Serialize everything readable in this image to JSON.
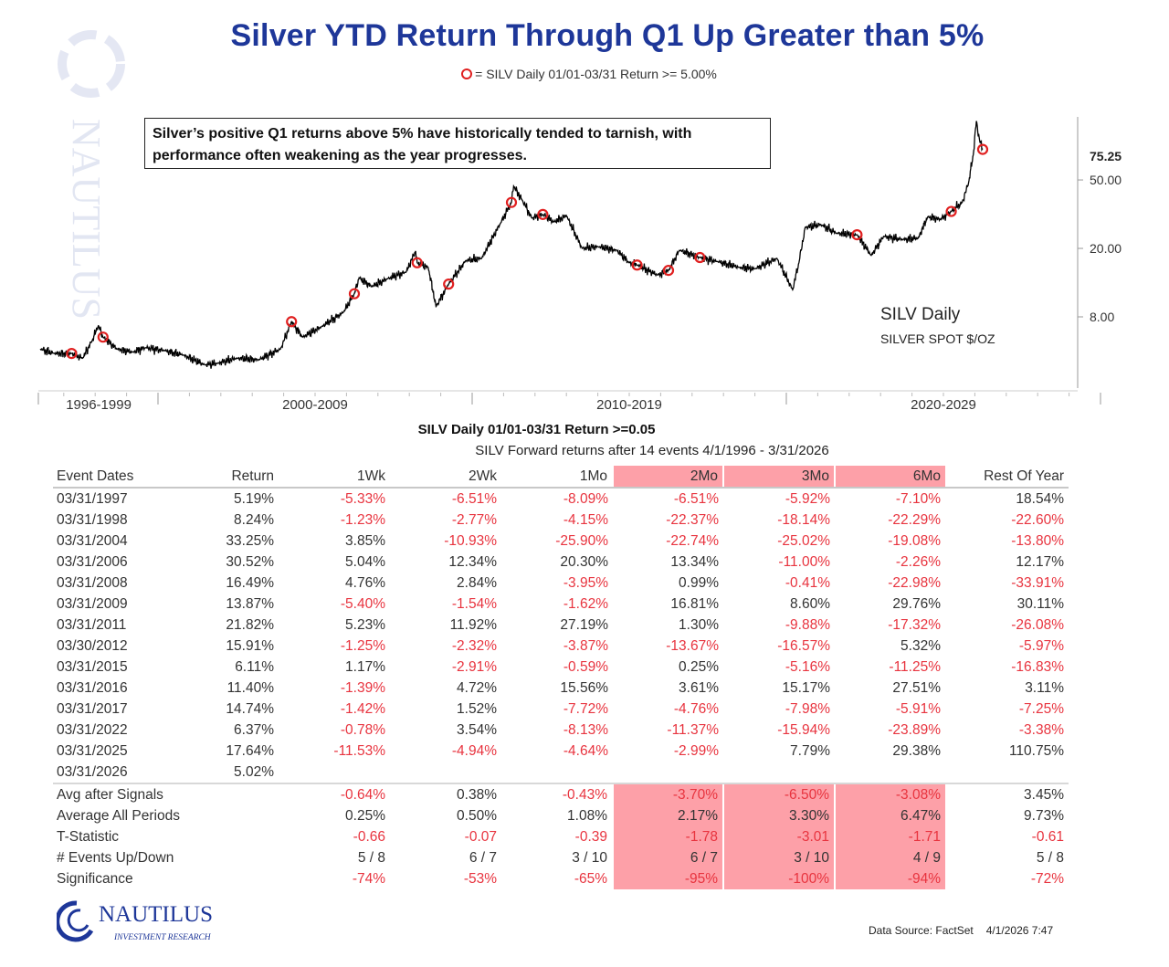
{
  "title": "Silver YTD Return Through Q1 Up Greater than 5%",
  "legend": "= SILV Daily 01/01-03/31 Return >= 5.00%",
  "note": "Silver’s positive Q1 returns above 5% have historically tended to tarnish, with performance often weakening as the year progresses.",
  "colors": {
    "title": "#1e3799",
    "line": "#000000",
    "marker": "#e02020",
    "negative": "#e8343f",
    "highlight": "#fda0a8"
  },
  "chart_data": {
    "type": "line",
    "series_name": "SILV Daily",
    "series_sub": "SILVER SPOT $/OZ",
    "yscale": "log",
    "y_ticks": [
      8,
      20,
      50
    ],
    "y_tick_labels": [
      "8.00",
      "20.00",
      "50.00"
    ],
    "last_value_label": "75.25",
    "last_value": 75.25,
    "x_ticks": [
      "1996-1999",
      "2000-2009",
      "2010-2019",
      "2020-2029"
    ],
    "xlim": [
      1996.0,
      2030.0
    ],
    "points": [
      [
        1996.25,
        5.2
      ],
      [
        1996.7,
        4.9
      ],
      [
        1997.25,
        4.9
      ],
      [
        1997.6,
        4.6
      ],
      [
        1997.9,
        5.8
      ],
      [
        1998.1,
        7.1
      ],
      [
        1998.25,
        6.1
      ],
      [
        1998.7,
        5.2
      ],
      [
        1999.2,
        5.0
      ],
      [
        1999.6,
        5.3
      ],
      [
        2000.2,
        5.1
      ],
      [
        2000.8,
        4.8
      ],
      [
        2001.5,
        4.2
      ],
      [
        2001.9,
        4.3
      ],
      [
        2002.5,
        4.6
      ],
      [
        2003.2,
        4.5
      ],
      [
        2003.9,
        5.2
      ],
      [
        2004.25,
        7.5
      ],
      [
        2004.6,
        6.1
      ],
      [
        2005.2,
        7.0
      ],
      [
        2005.9,
        8.5
      ],
      [
        2006.25,
        10.9
      ],
      [
        2006.4,
        13.5
      ],
      [
        2006.8,
        12.0
      ],
      [
        2007.3,
        13.3
      ],
      [
        2007.9,
        14.6
      ],
      [
        2008.2,
        19.3
      ],
      [
        2008.25,
        16.5
      ],
      [
        2008.6,
        15.5
      ],
      [
        2008.85,
        9.2
      ],
      [
        2009.25,
        12.4
      ],
      [
        2009.8,
        17.0
      ],
      [
        2010.3,
        17.5
      ],
      [
        2010.9,
        28.0
      ],
      [
        2011.25,
        37.0
      ],
      [
        2011.32,
        46.0
      ],
      [
        2011.6,
        38.0
      ],
      [
        2011.9,
        30.0
      ],
      [
        2012.25,
        31.5
      ],
      [
        2012.6,
        28.5
      ],
      [
        2013.0,
        31.0
      ],
      [
        2013.5,
        20.0
      ],
      [
        2014.0,
        20.5
      ],
      [
        2014.6,
        19.5
      ],
      [
        2015.0,
        16.5
      ],
      [
        2015.25,
        16.0
      ],
      [
        2015.9,
        14.0
      ],
      [
        2016.25,
        14.9
      ],
      [
        2016.6,
        19.5
      ],
      [
        2017.25,
        17.7
      ],
      [
        2017.8,
        16.8
      ],
      [
        2018.5,
        15.5
      ],
      [
        2019.0,
        15.2
      ],
      [
        2019.7,
        17.5
      ],
      [
        2020.2,
        11.5
      ],
      [
        2020.4,
        16.5
      ],
      [
        2020.6,
        26.5
      ],
      [
        2021.1,
        27.5
      ],
      [
        2021.6,
        24.5
      ],
      [
        2022.25,
        24.0
      ],
      [
        2022.7,
        18.2
      ],
      [
        2023.1,
        23.5
      ],
      [
        2023.7,
        22.5
      ],
      [
        2024.2,
        23.0
      ],
      [
        2024.5,
        30.5
      ],
      [
        2024.9,
        29.5
      ],
      [
        2025.25,
        32.8
      ],
      [
        2025.6,
        37.0
      ],
      [
        2025.8,
        48.0
      ],
      [
        2025.95,
        70.0
      ],
      [
        2026.05,
        110.0
      ],
      [
        2026.15,
        85.0
      ],
      [
        2026.25,
        75.25
      ]
    ],
    "events": [
      [
        1997.25,
        4.9
      ],
      [
        1998.25,
        6.1
      ],
      [
        2004.25,
        7.5
      ],
      [
        2006.25,
        10.9
      ],
      [
        2008.25,
        16.5
      ],
      [
        2009.25,
        12.4
      ],
      [
        2011.25,
        37.0
      ],
      [
        2012.25,
        31.5
      ],
      [
        2015.25,
        16.0
      ],
      [
        2016.25,
        14.9
      ],
      [
        2017.25,
        17.7
      ],
      [
        2022.25,
        24.0
      ],
      [
        2025.25,
        32.8
      ],
      [
        2026.25,
        75.25
      ]
    ]
  },
  "table": {
    "title": "SILV Daily 01/01-03/31 Return >=0.05",
    "subtitle": "SILV Forward returns after 14 events 4/1/1996 - 3/31/2026",
    "headers": [
      "Event Dates",
      "Return",
      "1Wk",
      "2Wk",
      "1Mo",
      "2Mo",
      "3Mo",
      "6Mo",
      "Rest Of Year"
    ],
    "rows": [
      [
        "03/31/1997",
        "5.19%",
        "-5.33%",
        "-6.51%",
        "-8.09%",
        "-6.51%",
        "-5.92%",
        "-7.10%",
        "18.54%"
      ],
      [
        "03/31/1998",
        "8.24%",
        "-1.23%",
        "-2.77%",
        "-4.15%",
        "-22.37%",
        "-18.14%",
        "-22.29%",
        "-22.60%"
      ],
      [
        "03/31/2004",
        "33.25%",
        "3.85%",
        "-10.93%",
        "-25.90%",
        "-22.74%",
        "-25.02%",
        "-19.08%",
        "-13.80%"
      ],
      [
        "03/31/2006",
        "30.52%",
        "5.04%",
        "12.34%",
        "20.30%",
        "13.34%",
        "-11.00%",
        "-2.26%",
        "12.17%"
      ],
      [
        "03/31/2008",
        "16.49%",
        "4.76%",
        "2.84%",
        "-3.95%",
        "0.99%",
        "-0.41%",
        "-22.98%",
        "-33.91%"
      ],
      [
        "03/31/2009",
        "13.87%",
        "-5.40%",
        "-1.54%",
        "-1.62%",
        "16.81%",
        "8.60%",
        "29.76%",
        "30.11%"
      ],
      [
        "03/31/2011",
        "21.82%",
        "5.23%",
        "11.92%",
        "27.19%",
        "1.30%",
        "-9.88%",
        "-17.32%",
        "-26.08%"
      ],
      [
        "03/30/2012",
        "15.91%",
        "-1.25%",
        "-2.32%",
        "-3.87%",
        "-13.67%",
        "-16.57%",
        "5.32%",
        "-5.97%"
      ],
      [
        "03/31/2015",
        "6.11%",
        "1.17%",
        "-2.91%",
        "-0.59%",
        "0.25%",
        "-5.16%",
        "-11.25%",
        "-16.83%"
      ],
      [
        "03/31/2016",
        "11.40%",
        "-1.39%",
        "4.72%",
        "15.56%",
        "3.61%",
        "15.17%",
        "27.51%",
        "3.11%"
      ],
      [
        "03/31/2017",
        "14.74%",
        "-1.42%",
        "1.52%",
        "-7.72%",
        "-4.76%",
        "-7.98%",
        "-5.91%",
        "-7.25%"
      ],
      [
        "03/31/2022",
        "6.37%",
        "-0.78%",
        "3.54%",
        "-8.13%",
        "-11.37%",
        "-15.94%",
        "-23.89%",
        "-3.38%"
      ],
      [
        "03/31/2025",
        "17.64%",
        "-11.53%",
        "-4.94%",
        "-4.64%",
        "-2.99%",
        "7.79%",
        "29.38%",
        "110.75%"
      ],
      [
        "03/31/2026",
        "5.02%",
        "",
        "",
        "",
        "",
        "",
        "",
        ""
      ]
    ],
    "summary": [
      [
        "Avg after Signals",
        "",
        "-0.64%",
        "0.38%",
        "-0.43%",
        "-3.70%",
        "-6.50%",
        "-3.08%",
        "3.45%"
      ],
      [
        "Average All Periods",
        "",
        "0.25%",
        "0.50%",
        "1.08%",
        "2.17%",
        "3.30%",
        "6.47%",
        "9.73%"
      ],
      [
        "T-Statistic",
        "",
        "-0.66",
        "-0.07",
        "-0.39",
        "-1.78",
        "-3.01",
        "-1.71",
        "-0.61"
      ],
      [
        "# Events Up/Down",
        "",
        "5 / 8",
        "6 / 7",
        "3 / 10",
        "6 / 7",
        "3 / 10",
        "4 / 9",
        "5 / 8"
      ],
      [
        "Significance",
        "",
        "-74%",
        "-53%",
        "-65%",
        "-95%",
        "-100%",
        "-94%",
        "-72%"
      ]
    ],
    "negative_rows_in_summary": [
      "T-Statistic",
      "Significance"
    ]
  },
  "footer": {
    "source": "Data Source: FactSet",
    "timestamp": "4/1/2026 7:47"
  },
  "logo": {
    "name": "NAUTILUS",
    "tagline": "INVESTMENT RESEARCH"
  }
}
